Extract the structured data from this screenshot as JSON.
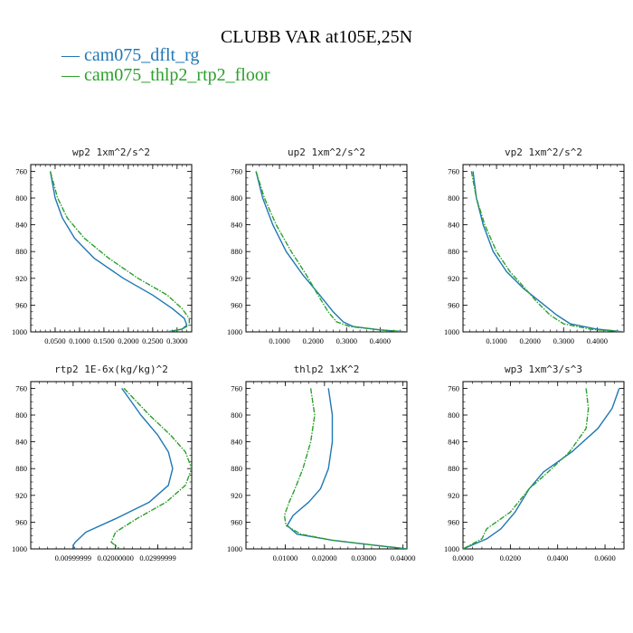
{
  "figure": {
    "title": "CLUBB VAR at105E,25N"
  },
  "legend": [
    {
      "label": "— cam075_dflt_rg",
      "color": "#1f77b4"
    },
    {
      "label": "— cam075_thlp2_rtp2_floor",
      "color": "#2ca02c"
    }
  ],
  "chart_data": [
    {
      "type": "line",
      "title": "wp2   1xm^2/s^2",
      "xlim": [
        0.0,
        0.33
      ],
      "ylim": [
        1000,
        750
      ],
      "xticks": [
        0.05,
        0.1,
        0.15,
        0.2,
        0.25,
        0.3
      ],
      "xtick_labels": [
        "0.0500",
        "0.1000",
        "0.1500",
        "0.2000",
        "0.2500",
        "0.3000"
      ],
      "yticks": [
        760,
        800,
        840,
        880,
        920,
        960,
        1000
      ],
      "ytick_labels": [
        "760",
        "800",
        "840",
        "880",
        "920",
        "960",
        "1000"
      ],
      "series": [
        {
          "name": "cam075_dflt_rg",
          "color": "#1f77b4",
          "dashed": false,
          "x": [
            0.04,
            0.05,
            0.065,
            0.09,
            0.13,
            0.19,
            0.25,
            0.29,
            0.315,
            0.32,
            0.31,
            0.28
          ],
          "y": [
            760,
            800,
            830,
            860,
            890,
            920,
            945,
            965,
            980,
            990,
            996,
            1000
          ]
        },
        {
          "name": "cam075_thlp2_rtp2_floor",
          "color": "#2ca02c",
          "dashed": true,
          "x": [
            0.04,
            0.055,
            0.075,
            0.11,
            0.16,
            0.22,
            0.28,
            0.31,
            0.325,
            0.325,
            0.31,
            0.28
          ],
          "y": [
            760,
            800,
            830,
            860,
            890,
            920,
            945,
            965,
            980,
            990,
            996,
            1000
          ]
        }
      ]
    },
    {
      "type": "line",
      "title": "up2   1xm^2/s^2",
      "xlim": [
        0.0,
        0.48
      ],
      "ylim": [
        1000,
        750
      ],
      "xticks": [
        0.1,
        0.2,
        0.3,
        0.4
      ],
      "xtick_labels": [
        "0.1000",
        "0.2000",
        "0.3000",
        "0.4000"
      ],
      "yticks": [
        760,
        800,
        840,
        880,
        920,
        960,
        1000
      ],
      "ytick_labels": [
        "760",
        "800",
        "840",
        "880",
        "920",
        "960",
        "1000"
      ],
      "series": [
        {
          "name": "cam075_dflt_rg",
          "color": "#1f77b4",
          "dashed": false,
          "x": [
            0.03,
            0.05,
            0.08,
            0.12,
            0.17,
            0.22,
            0.26,
            0.29,
            0.32,
            0.4,
            0.48
          ],
          "y": [
            760,
            800,
            840,
            880,
            915,
            945,
            970,
            985,
            992,
            997,
            1000
          ]
        },
        {
          "name": "cam075_thlp2_rtp2_floor",
          "color": "#2ca02c",
          "dashed": true,
          "x": [
            0.03,
            0.055,
            0.09,
            0.135,
            0.18,
            0.215,
            0.245,
            0.27,
            0.31,
            0.4,
            0.48
          ],
          "y": [
            760,
            800,
            840,
            880,
            915,
            945,
            970,
            985,
            992,
            997,
            1000
          ]
        }
      ]
    },
    {
      "type": "line",
      "title": "vp2   1xm^2/s^2",
      "xlim": [
        0.0,
        0.48
      ],
      "ylim": [
        1000,
        750
      ],
      "xticks": [
        0.1,
        0.2,
        0.3,
        0.4
      ],
      "xtick_labels": [
        "0.1000",
        "0.2000",
        "0.3000",
        "0.4000"
      ],
      "yticks": [
        760,
        800,
        840,
        880,
        920,
        960,
        1000
      ],
      "ytick_labels": [
        "760",
        "800",
        "840",
        "880",
        "920",
        "960",
        "1000"
      ],
      "series": [
        {
          "name": "cam075_dflt_rg",
          "color": "#1f77b4",
          "dashed": false,
          "x": [
            0.03,
            0.04,
            0.06,
            0.09,
            0.13,
            0.18,
            0.23,
            0.28,
            0.32,
            0.4,
            0.48
          ],
          "y": [
            760,
            800,
            840,
            880,
            910,
            935,
            955,
            975,
            988,
            996,
            1000
          ]
        },
        {
          "name": "cam075_thlp2_rtp2_floor",
          "color": "#2ca02c",
          "dashed": true,
          "x": [
            0.025,
            0.04,
            0.065,
            0.1,
            0.14,
            0.185,
            0.22,
            0.26,
            0.3,
            0.38,
            0.48
          ],
          "y": [
            760,
            800,
            840,
            880,
            910,
            935,
            955,
            975,
            988,
            996,
            1000
          ]
        }
      ]
    },
    {
      "type": "line",
      "title": "rtp2   1E-6x(kg/kg)^2",
      "xlim": [
        0.0,
        0.038
      ],
      "ylim": [
        1000,
        750
      ],
      "xticks": [
        0.01,
        0.02,
        0.03
      ],
      "xtick_labels": [
        "0.00999999",
        "0.02000000",
        "0.02999999"
      ],
      "yticks": [
        760,
        800,
        840,
        880,
        920,
        960,
        1000
      ],
      "ytick_labels": [
        "760",
        "800",
        "840",
        "880",
        "920",
        "960",
        "1000"
      ],
      "series": [
        {
          "name": "cam075_dflt_rg",
          "color": "#1f77b4",
          "dashed": false,
          "x": [
            0.0215,
            0.026,
            0.03,
            0.0325,
            0.0335,
            0.0325,
            0.028,
            0.02,
            0.013,
            0.0105,
            0.01,
            0.0105
          ],
          "y": [
            760,
            800,
            830,
            855,
            880,
            905,
            930,
            955,
            975,
            990,
            995,
            1000
          ]
        },
        {
          "name": "cam075_thlp2_rtp2_floor",
          "color": "#2ca02c",
          "dashed": true,
          "x": [
            0.022,
            0.028,
            0.033,
            0.0365,
            0.038,
            0.0365,
            0.032,
            0.025,
            0.02,
            0.019,
            0.02,
            0.021
          ],
          "y": [
            760,
            800,
            830,
            855,
            880,
            905,
            930,
            955,
            975,
            990,
            995,
            1000
          ]
        }
      ]
    },
    {
      "type": "line",
      "title": "thlp2   1xK^2",
      "xlim": [
        0.0,
        0.041
      ],
      "ylim": [
        1000,
        750
      ],
      "xticks": [
        0.01,
        0.02,
        0.03,
        0.04
      ],
      "xtick_labels": [
        "0.01000",
        "0.02000",
        "0.03000",
        "0.04000"
      ],
      "yticks": [
        760,
        800,
        840,
        880,
        920,
        960,
        1000
      ],
      "ytick_labels": [
        "760",
        "800",
        "840",
        "880",
        "920",
        "960",
        "1000"
      ],
      "series": [
        {
          "name": "cam075_dflt_rg",
          "color": "#1f77b4",
          "dashed": false,
          "x": [
            0.021,
            0.022,
            0.022,
            0.021,
            0.019,
            0.016,
            0.012,
            0.0105,
            0.013,
            0.022,
            0.032,
            0.041
          ],
          "y": [
            760,
            800,
            840,
            880,
            910,
            930,
            950,
            965,
            978,
            987,
            994,
            1000
          ]
        },
        {
          "name": "cam075_thlp2_rtp2_floor",
          "color": "#2ca02c",
          "dashed": true,
          "x": [
            0.0165,
            0.0175,
            0.0165,
            0.0145,
            0.0125,
            0.011,
            0.0098,
            0.0102,
            0.014,
            0.022,
            0.032,
            0.041
          ],
          "y": [
            760,
            800,
            840,
            880,
            910,
            930,
            950,
            965,
            978,
            987,
            994,
            1000
          ]
        }
      ]
    },
    {
      "type": "line",
      "title": "wp3   1xm^3/s^3",
      "xlim": [
        0.0,
        0.068
      ],
      "ylim": [
        1000,
        750
      ],
      "xticks": [
        0.0,
        0.02,
        0.04,
        0.06
      ],
      "xtick_labels": [
        "0.0000",
        "0.0200",
        "0.0400",
        "0.0600"
      ],
      "yticks": [
        760,
        800,
        840,
        880,
        920,
        960,
        1000
      ],
      "ytick_labels": [
        "760",
        "800",
        "840",
        "880",
        "920",
        "960",
        "1000"
      ],
      "series": [
        {
          "name": "cam075_dflt_rg",
          "color": "#1f77b4",
          "dashed": false,
          "x": [
            0.066,
            0.063,
            0.057,
            0.046,
            0.034,
            0.028,
            0.022,
            0.016,
            0.01,
            0.0
          ],
          "y": [
            760,
            790,
            820,
            855,
            885,
            910,
            945,
            970,
            985,
            1000
          ]
        },
        {
          "name": "cam075_thlp2_rtp2_floor",
          "color": "#2ca02c",
          "dashed": true,
          "x": [
            0.052,
            0.053,
            0.052,
            0.045,
            0.036,
            0.028,
            0.02,
            0.01,
            0.008,
            0.0
          ],
          "y": [
            760,
            790,
            820,
            855,
            885,
            910,
            945,
            970,
            985,
            1000
          ]
        }
      ]
    }
  ]
}
